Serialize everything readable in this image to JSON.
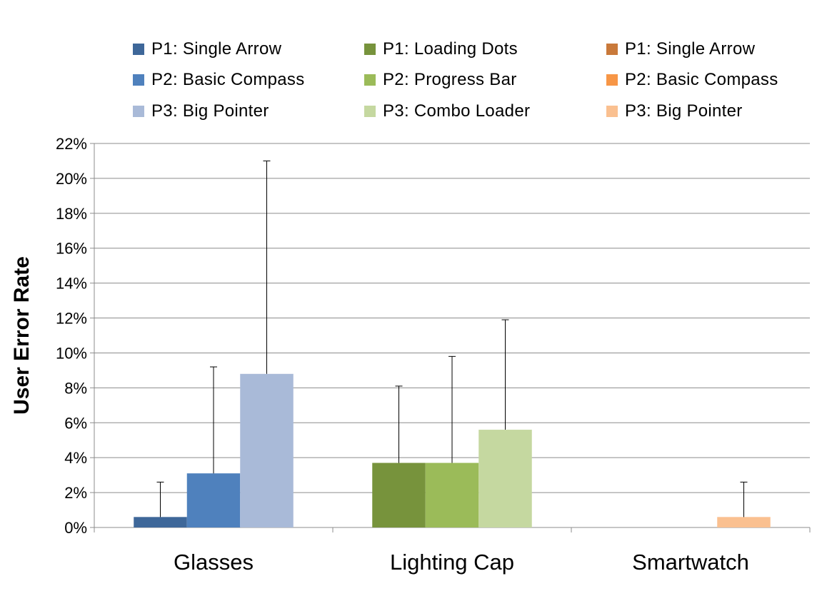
{
  "chart_data": {
    "type": "bar",
    "title": "",
    "xlabel": "",
    "ylabel": "User Error Rate",
    "ylim": [
      0,
      0.22
    ],
    "ytick_step": 0.02,
    "y_format": "percent",
    "grid": true,
    "legend_position": "top",
    "categories": [
      "Glasses",
      "Lighting Cap",
      "Smartwatch"
    ],
    "series": [
      {
        "name": "P1: Single Arrow",
        "color": "#3E6799",
        "category": "Glasses",
        "value": 0.006,
        "error_upper": 0.026
      },
      {
        "name": "P2: Basic Compass",
        "color": "#4F81BD",
        "category": "Glasses",
        "value": 0.031,
        "error_upper": 0.092
      },
      {
        "name": "P3: Big Pointer",
        "color": "#A9BAD8",
        "category": "Glasses",
        "value": 0.088,
        "error_upper": 0.21
      },
      {
        "name": "P1: Loading Dots",
        "color": "#77933C",
        "category": "Lighting Cap",
        "value": 0.037,
        "error_upper": 0.081
      },
      {
        "name": "P2: Progress Bar",
        "color": "#9BBB59",
        "category": "Lighting Cap",
        "value": 0.037,
        "error_upper": 0.098
      },
      {
        "name": "P3: Combo Loader",
        "color": "#C5D8A0",
        "category": "Lighting Cap",
        "value": 0.056,
        "error_upper": 0.119
      },
      {
        "name": "P1: Single Arrow",
        "color": "#C9793A",
        "category": "Smartwatch",
        "value": 0.0,
        "error_upper": null
      },
      {
        "name": "P2: Basic Compass",
        "color": "#F79646",
        "category": "Smartwatch",
        "value": 0.0,
        "error_upper": null
      },
      {
        "name": "P3: Big Pointer",
        "color": "#FAC090",
        "category": "Smartwatch",
        "value": 0.006,
        "error_upper": 0.026
      }
    ]
  }
}
